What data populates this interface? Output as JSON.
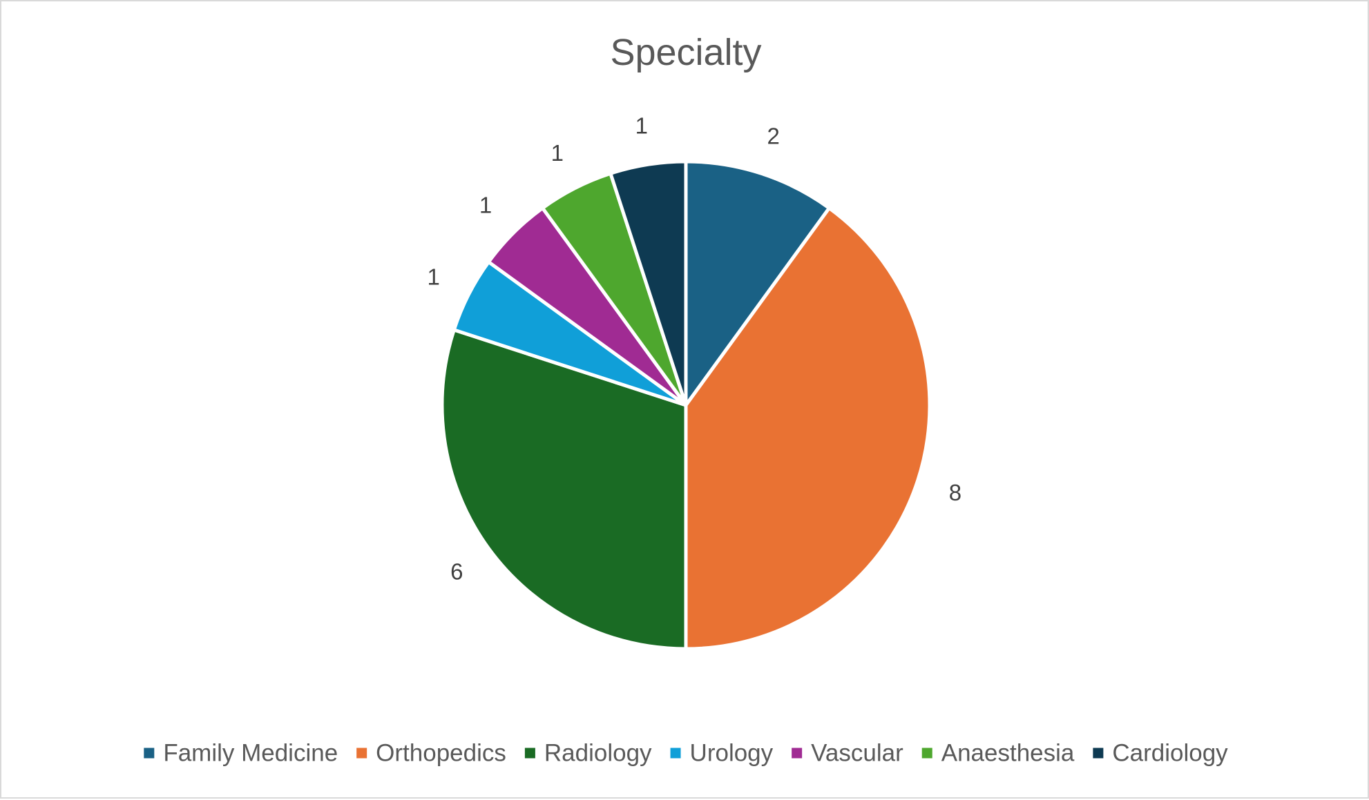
{
  "chart_data": {
    "type": "pie",
    "title": "Specialty",
    "categories": [
      "Family Medicine",
      "Orthopedics",
      "Radiology",
      "Urology",
      "Vascular",
      "Anaesthesia",
      "Cardiology"
    ],
    "values": [
      2,
      8,
      6,
      1,
      1,
      1,
      1
    ],
    "colors": [
      "#1a6185",
      "#e97233",
      "#1a6b24",
      "#109fd8",
      "#a02b93",
      "#4ea72e",
      "#0e3a52"
    ],
    "data_labels_shown": true,
    "start_angle_deg": 0,
    "direction": "clockwise",
    "legend_position": "bottom"
  }
}
